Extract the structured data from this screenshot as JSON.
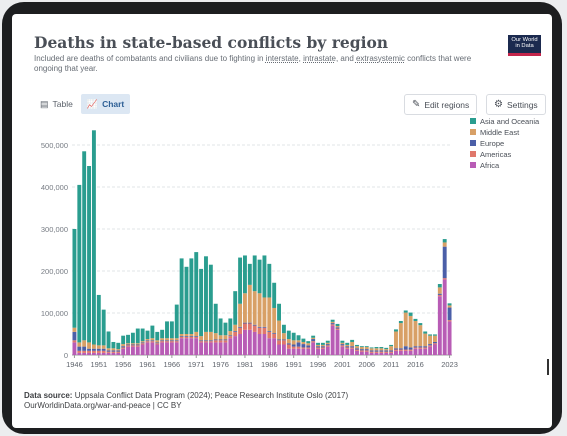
{
  "header": {
    "title": "Deaths in state-based conflicts by region",
    "subtitle_pre": "Included are deaths of combatants and civilians due to fighting in ",
    "subtitle_link1": "interstate",
    "subtitle_sep1": ", ",
    "subtitle_link2": "intrastate",
    "subtitle_sep2": ", and ",
    "subtitle_link3": "extrasystemic",
    "subtitle_post": " conflicts that were ongoing that year.",
    "logo_line1": "Our World",
    "logo_line2": "in Data"
  },
  "controls": {
    "tab_table": "Table",
    "tab_chart": "Chart",
    "edit_regions": "Edit regions",
    "settings": "Settings"
  },
  "footer": {
    "source_label": "Data source:",
    "source_text": " Uppsala Conflict Data Program (2024); Peace Research Institute Oslo (2017)",
    "url": "OurWorldinData.org/war-and-peace | CC BY"
  },
  "chart_data": {
    "type": "bar",
    "stacked": true,
    "ylim": [
      0,
      550000
    ],
    "yticks": [
      0,
      100000,
      200000,
      300000,
      400000,
      500000
    ],
    "ytick_labels": [
      "0",
      "100,000",
      "200,000",
      "300,000",
      "400,000",
      "500,000"
    ],
    "xticks": [
      "1946",
      "1951",
      "1956",
      "1961",
      "1966",
      "1971",
      "1976",
      "1981",
      "1986",
      "1991",
      "1996",
      "2001",
      "2006",
      "2011",
      "2016",
      "2023"
    ],
    "grid": true,
    "legend_position": "right",
    "years": [
      1946,
      1947,
      1948,
      1949,
      1950,
      1951,
      1952,
      1953,
      1954,
      1955,
      1956,
      1957,
      1958,
      1959,
      1960,
      1961,
      1962,
      1963,
      1964,
      1965,
      1966,
      1967,
      1968,
      1969,
      1970,
      1971,
      1972,
      1973,
      1974,
      1975,
      1976,
      1977,
      1978,
      1979,
      1980,
      1981,
      1982,
      1983,
      1984,
      1985,
      1986,
      1987,
      1988,
      1989,
      1990,
      1991,
      1992,
      1993,
      1994,
      1995,
      1996,
      1997,
      1998,
      1999,
      2000,
      2001,
      2002,
      2003,
      2004,
      2005,
      2006,
      2007,
      2008,
      2009,
      2010,
      2011,
      2012,
      2013,
      2014,
      2015,
      2016,
      2017,
      2018,
      2019,
      2020,
      2021,
      2022,
      2023
    ],
    "series": [
      {
        "name": "Asia and Oceania",
        "color": "#2a9d8f",
        "values": [
          235000,
          375000,
          450000,
          420000,
          510000,
          120000,
          85000,
          40000,
          15000,
          15000,
          20000,
          20000,
          25000,
          35000,
          30000,
          20000,
          30000,
          20000,
          20000,
          40000,
          40000,
          80000,
          180000,
          160000,
          180000,
          190000,
          160000,
          180000,
          160000,
          70000,
          40000,
          30000,
          30000,
          80000,
          110000,
          90000,
          50000,
          85000,
          80000,
          100000,
          80000,
          60000,
          40000,
          20000,
          20000,
          18000,
          12000,
          8000,
          5000,
          5000,
          5000,
          5000,
          5000,
          5000,
          5000,
          5000,
          5000,
          5000,
          3000,
          2000,
          2000,
          2000,
          3000,
          3000,
          3000,
          3000,
          5000,
          5000,
          5000,
          8000,
          5000,
          5000,
          5000,
          3000,
          3000,
          8000,
          8000,
          5000
        ]
      },
      {
        "name": "Middle East",
        "color": "#d8a066",
        "values": [
          10000,
          10000,
          15000,
          15000,
          10000,
          8000,
          8000,
          5000,
          5000,
          3000,
          5000,
          3000,
          3000,
          3000,
          3000,
          3000,
          5000,
          5000,
          5000,
          5000,
          5000,
          5000,
          5000,
          5000,
          5000,
          10000,
          10000,
          20000,
          20000,
          15000,
          10000,
          10000,
          10000,
          15000,
          55000,
          70000,
          90000,
          80000,
          80000,
          70000,
          80000,
          60000,
          45000,
          15000,
          10000,
          10000,
          5000,
          5000,
          5000,
          3000,
          3000,
          3000,
          3000,
          3000,
          3000,
          3000,
          3000,
          10000,
          5000,
          5000,
          5000,
          5000,
          5000,
          5000,
          3000,
          10000,
          40000,
          60000,
          80000,
          75000,
          60000,
          50000,
          30000,
          20000,
          15000,
          15000,
          10000,
          5000
        ]
      },
      {
        "name": "Europe",
        "color": "#4b5fa8",
        "values": [
          20000,
          10000,
          10000,
          5000,
          5000,
          5000,
          5000,
          3000,
          3000,
          3000,
          3000,
          2000,
          2000,
          2000,
          2000,
          2000,
          2000,
          2000,
          2000,
          2000,
          2000,
          2000,
          2000,
          2000,
          2000,
          2000,
          2000,
          2000,
          2000,
          2000,
          2000,
          2000,
          2000,
          2000,
          2000,
          2000,
          2000,
          2000,
          2000,
          2000,
          2000,
          2000,
          2000,
          2000,
          3000,
          5000,
          10000,
          8000,
          5000,
          5000,
          3000,
          3000,
          3000,
          3000,
          3000,
          3000,
          3000,
          3000,
          3000,
          3000,
          3000,
          3000,
          3000,
          3000,
          3000,
          3000,
          3000,
          3000,
          8000,
          5000,
          3000,
          3000,
          3000,
          3000,
          3000,
          3000,
          75000,
          30000
        ]
      },
      {
        "name": "Americas",
        "color": "#e0776b",
        "values": [
          5000,
          5000,
          5000,
          5000,
          5000,
          5000,
          5000,
          3000,
          3000,
          3000,
          3000,
          3000,
          3000,
          3000,
          3000,
          3000,
          3000,
          3000,
          3000,
          3000,
          3000,
          3000,
          3000,
          3000,
          3000,
          3000,
          3000,
          3000,
          3000,
          5000,
          5000,
          5000,
          5000,
          10000,
          15000,
          15000,
          15000,
          15000,
          15000,
          15000,
          15000,
          10000,
          10000,
          10000,
          10000,
          5000,
          5000,
          3000,
          3000,
          3000,
          3000,
          3000,
          3000,
          3000,
          3000,
          3000,
          3000,
          3000,
          3000,
          3000,
          3000,
          3000,
          3000,
          3000,
          3000,
          3000,
          3000,
          3000,
          3000,
          3000,
          3000,
          3000,
          3000,
          3000,
          3000,
          3000,
          3000,
          3000
        ]
      },
      {
        "name": "Africa",
        "color": "#b85cb5",
        "values": [
          30000,
          5000,
          5000,
          5000,
          5000,
          5000,
          5000,
          5000,
          5000,
          5000,
          15000,
          20000,
          20000,
          20000,
          25000,
          30000,
          30000,
          25000,
          30000,
          30000,
          30000,
          30000,
          40000,
          40000,
          40000,
          40000,
          30000,
          30000,
          30000,
          30000,
          30000,
          30000,
          40000,
          45000,
          50000,
          60000,
          60000,
          55000,
          50000,
          50000,
          40000,
          40000,
          25000,
          25000,
          15000,
          15000,
          15000,
          15000,
          15000,
          30000,
          15000,
          15000,
          20000,
          70000,
          60000,
          20000,
          15000,
          15000,
          10000,
          8000,
          8000,
          5000,
          5000,
          5000,
          5000,
          5000,
          10000,
          10000,
          10000,
          10000,
          15000,
          15000,
          15000,
          20000,
          25000,
          140000,
          180000,
          80000
        ]
      }
    ]
  }
}
